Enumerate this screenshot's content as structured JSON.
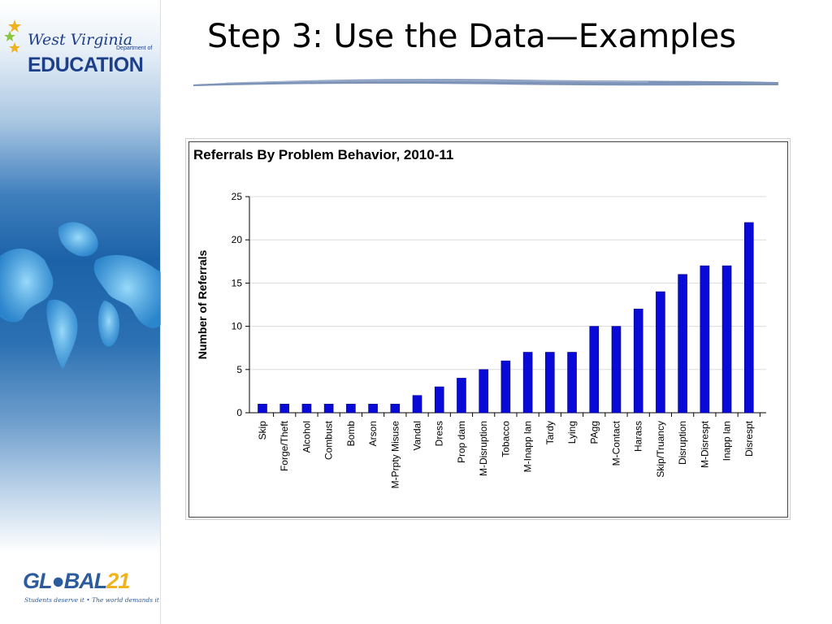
{
  "slide": {
    "title": "Step 3:  Use the Data—Examples"
  },
  "branding": {
    "wv_script": "West Virginia",
    "wv_department": "Department of",
    "wv_education": "EDUCATION",
    "global_word": "GL●BAL",
    "global_number": "21",
    "global_tagline": "Students deserve it • The world demands it",
    "brand_blue": "#1d3f8a",
    "brand_gold": "#f0b21d"
  },
  "chart_data": {
    "type": "bar",
    "title": "Referrals By Problem Behavior, 2010-11",
    "xlabel": "",
    "ylabel": "Number of Referrals",
    "ylim": [
      0,
      25
    ],
    "yticks": [
      0,
      5,
      10,
      15,
      20,
      25
    ],
    "grid": true,
    "bar_color": "#0a0ad8",
    "categories": [
      "Skip",
      "Forge/Theft",
      "Alcohol",
      "Combust",
      "Bomb",
      "Arson",
      "M-Prpty Misuse",
      "Vandal",
      "Dress",
      "Prop dam",
      "M-Disruption",
      "Tobacco",
      "M-Inapp lan",
      "Tardy",
      "Lying",
      "PAgg",
      "M-Contact",
      "Harass",
      "Skip/Truancy",
      "Disruption",
      "M-Disrespt",
      "Inapp lan",
      "Disrespt"
    ],
    "values": [
      1,
      1,
      1,
      1,
      1,
      1,
      1,
      2,
      3,
      4,
      5,
      6,
      7,
      7,
      7,
      10,
      10,
      12,
      14,
      16,
      17,
      17,
      22
    ]
  }
}
